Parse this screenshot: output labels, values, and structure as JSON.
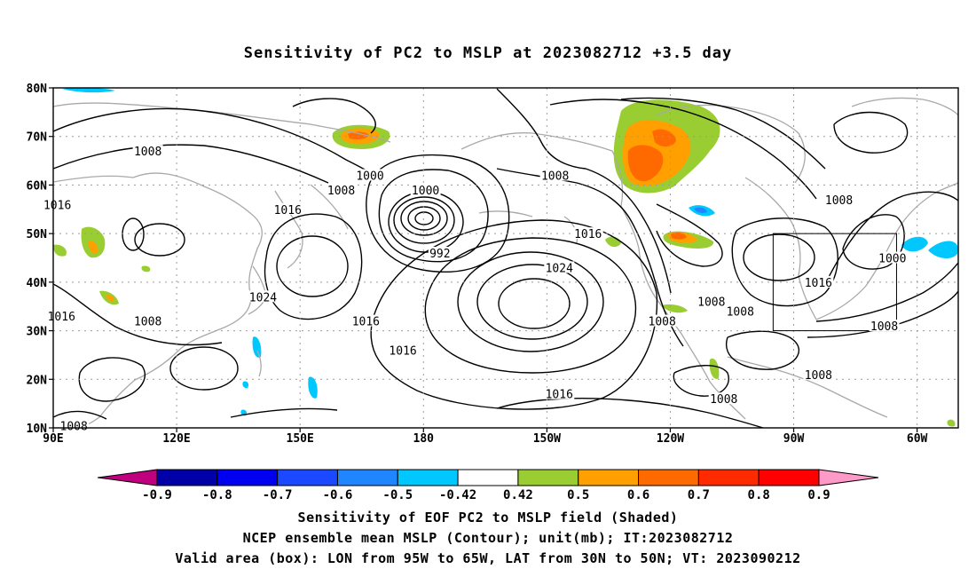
{
  "title": "Sensitivity of PC2 to MSLP at 2023082712 +3.5 day",
  "lat_labels": [
    "80N",
    "70N",
    "60N",
    "50N",
    "40N",
    "30N",
    "20N",
    "10N"
  ],
  "lon_labels": [
    "90E",
    "120E",
    "150E",
    "180",
    "150W",
    "120W",
    "90W",
    "60W"
  ],
  "contour_labels": [
    {
      "text": "1008",
      "lon": 113,
      "lat": 67
    },
    {
      "text": "1000",
      "lon": 167,
      "lat": 62
    },
    {
      "text": "1008",
      "lon": 160,
      "lat": 59
    },
    {
      "text": "1016",
      "lon": 91,
      "lat": 56
    },
    {
      "text": "1016",
      "lon": 147,
      "lat": 55
    },
    {
      "text": "1000",
      "lon": 180.5,
      "lat": 59
    },
    {
      "text": "992",
      "lon": 184,
      "lat": 46
    },
    {
      "text": "1008",
      "lon": 212,
      "lat": 62
    },
    {
      "text": "1016",
      "lon": 220,
      "lat": 50
    },
    {
      "text": "1024",
      "lon": 213,
      "lat": 43
    },
    {
      "text": "1024",
      "lon": 141,
      "lat": 37
    },
    {
      "text": "1016",
      "lon": 92,
      "lat": 33
    },
    {
      "text": "1008",
      "lon": 113,
      "lat": 32
    },
    {
      "text": "1016",
      "lon": 166,
      "lat": 32
    },
    {
      "text": "1016",
      "lon": 175,
      "lat": 26
    },
    {
      "text": "1016",
      "lon": 213,
      "lat": 17
    },
    {
      "text": "1008",
      "lon": 238,
      "lat": 32
    },
    {
      "text": "1008",
      "lon": 250,
      "lat": 36
    },
    {
      "text": "1008",
      "lon": 257,
      "lat": 34
    },
    {
      "text": "1008",
      "lon": 281,
      "lat": 57
    },
    {
      "text": "1016",
      "lon": 276,
      "lat": 40
    },
    {
      "text": "1000",
      "lon": 294,
      "lat": 45
    },
    {
      "text": "1008",
      "lon": 292,
      "lat": 31
    },
    {
      "text": "1008",
      "lon": 276,
      "lat": 21
    },
    {
      "text": "1008",
      "lon": 253,
      "lat": 16
    },
    {
      "text": "1008",
      "lon": 95,
      "lat": 10.5
    }
  ],
  "valid_box": {
    "lon_min": 265,
    "lon_max": 295,
    "lat_min": 30,
    "lat_max": 50
  },
  "colorbar": {
    "labels": [
      "-0.9",
      "-0.8",
      "-0.7",
      "-0.6",
      "-0.5",
      "-0.42",
      "0.42",
      "0.5",
      "0.6",
      "0.7",
      "0.8",
      "0.9"
    ],
    "colors": [
      "#c0007f",
      "#0000a8",
      "#0000f0",
      "#1a49ff",
      "#1f86ff",
      "#00c8ff",
      "#ffffff",
      "#9acd32",
      "#ffa000",
      "#ff6a00",
      "#ff2a00",
      "#ff0000",
      "#ff99c8"
    ]
  },
  "caption_line1": "Sensitivity of EOF PC2 to MSLP field (Shaded)",
  "caption_line2": "NCEP ensemble mean MSLP (Contour); unit(mb); IT:2023082712",
  "caption_line3": "Valid area (box): LON from 95W to 65W, LAT from 30N to 50N; VT: 2023090212"
}
